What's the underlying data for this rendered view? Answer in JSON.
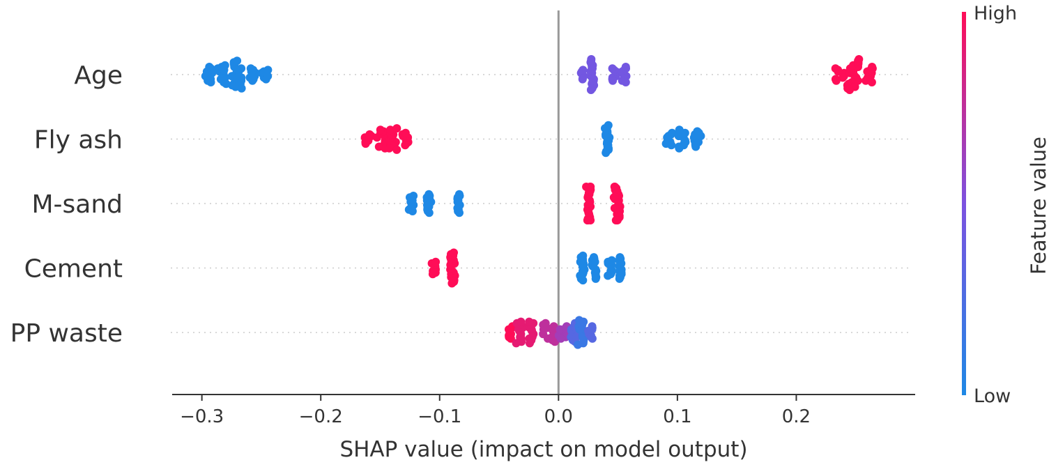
{
  "chart_data": {
    "type": "scatter",
    "subtype": "shap-beeswarm",
    "xlabel": "SHAP value (impact on model output)",
    "xlim": [
      -0.325,
      0.3
    ],
    "xticks": [
      -0.3,
      -0.2,
      -0.1,
      0.0,
      0.1,
      0.2
    ],
    "xtick_labels": [
      "−0.3",
      "−0.2",
      "−0.1",
      "0.0",
      "0.1",
      "0.2"
    ],
    "colorbar": {
      "title": "Feature value",
      "high_label": "High",
      "low_label": "Low",
      "high_color": "#ff0d57",
      "low_color": "#1e88e5"
    },
    "features": [
      {
        "name": "Age",
        "clusters": [
          {
            "center": -0.294,
            "spread": 0.003,
            "count": 10,
            "color": 0.0
          },
          {
            "center": -0.283,
            "spread": 0.004,
            "count": 12,
            "color": 0.0
          },
          {
            "center": -0.271,
            "spread": 0.005,
            "count": 18,
            "color": 0.0
          },
          {
            "center": -0.257,
            "spread": 0.003,
            "count": 8,
            "color": 0.0
          },
          {
            "center": -0.247,
            "spread": 0.003,
            "count": 6,
            "color": 0.0
          },
          {
            "center": 0.021,
            "spread": 0.003,
            "count": 6,
            "color": 0.45
          },
          {
            "center": 0.028,
            "spread": 0.002,
            "count": 20,
            "color": 0.45
          },
          {
            "center": 0.047,
            "spread": 0.002,
            "count": 8,
            "color": 0.45
          },
          {
            "center": 0.055,
            "spread": 0.002,
            "count": 10,
            "color": 0.45
          },
          {
            "center": 0.237,
            "spread": 0.004,
            "count": 8,
            "color": 1.0
          },
          {
            "center": 0.248,
            "spread": 0.005,
            "count": 20,
            "color": 1.0
          },
          {
            "center": 0.262,
            "spread": 0.004,
            "count": 10,
            "color": 1.0
          }
        ]
      },
      {
        "name": "Fly ash",
        "clusters": [
          {
            "center": -0.16,
            "spread": 0.003,
            "count": 6,
            "color": 1.0
          },
          {
            "center": -0.149,
            "spread": 0.004,
            "count": 12,
            "color": 1.0
          },
          {
            "center": -0.14,
            "spread": 0.004,
            "count": 14,
            "color": 1.0
          },
          {
            "center": -0.129,
            "spread": 0.003,
            "count": 8,
            "color": 1.0
          },
          {
            "center": 0.041,
            "spread": 0.002,
            "count": 18,
            "color": 0.0
          },
          {
            "center": 0.093,
            "spread": 0.003,
            "count": 8,
            "color": 0.0
          },
          {
            "center": 0.104,
            "spread": 0.003,
            "count": 12,
            "color": 0.0
          },
          {
            "center": 0.117,
            "spread": 0.003,
            "count": 10,
            "color": 0.0
          }
        ]
      },
      {
        "name": "M-sand",
        "clusters": [
          {
            "center": -0.124,
            "spread": 0.002,
            "count": 10,
            "color": 0.0
          },
          {
            "center": -0.109,
            "spread": 0.002,
            "count": 12,
            "color": 0.0
          },
          {
            "center": -0.084,
            "spread": 0.001,
            "count": 12,
            "color": 0.0
          },
          {
            "center": 0.025,
            "spread": 0.002,
            "count": 26,
            "color": 1.0
          },
          {
            "center": 0.049,
            "spread": 0.003,
            "count": 24,
            "color": 1.0
          }
        ]
      },
      {
        "name": "Cement",
        "clusters": [
          {
            "center": -0.105,
            "spread": 0.002,
            "count": 8,
            "color": 1.0
          },
          {
            "center": -0.089,
            "spread": 0.002,
            "count": 20,
            "color": 1.0
          },
          {
            "center": 0.02,
            "spread": 0.002,
            "count": 16,
            "color": 0.0
          },
          {
            "center": 0.03,
            "spread": 0.002,
            "count": 14,
            "color": 0.0
          },
          {
            "center": 0.043,
            "spread": 0.002,
            "count": 10,
            "color": 0.0
          },
          {
            "center": 0.052,
            "spread": 0.001,
            "count": 14,
            "color": 0.0
          }
        ]
      },
      {
        "name": "PP waste",
        "clusters": [
          {
            "center": -0.04,
            "spread": 0.002,
            "count": 8,
            "color": 1.0
          },
          {
            "center": -0.033,
            "spread": 0.003,
            "count": 14,
            "color": 0.9
          },
          {
            "center": -0.022,
            "spread": 0.003,
            "count": 14,
            "color": 0.9
          },
          {
            "center": -0.008,
            "spread": 0.005,
            "count": 12,
            "color": 0.75
          },
          {
            "center": 0.004,
            "spread": 0.004,
            "count": 8,
            "color": 0.65
          },
          {
            "center": 0.012,
            "spread": 0.003,
            "count": 12,
            "color": 0.3
          },
          {
            "center": 0.019,
            "spread": 0.003,
            "count": 16,
            "color": 0.15
          },
          {
            "center": 0.027,
            "spread": 0.002,
            "count": 8,
            "color": 0.3
          }
        ]
      }
    ]
  }
}
